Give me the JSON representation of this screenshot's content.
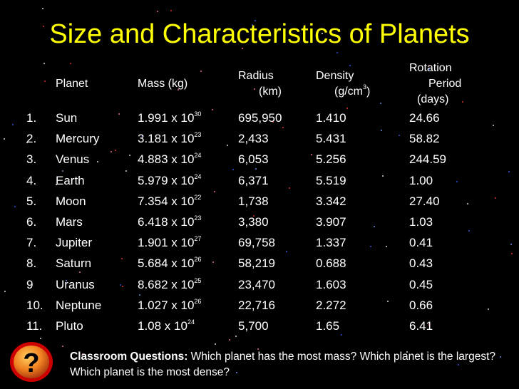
{
  "title": "Size and Characteristics of Planets",
  "headers": {
    "planet": "Planet",
    "mass": "Mass (kg)",
    "radius_line1": "Radius",
    "radius_line2": "(km)",
    "density_line1": "Density",
    "density_line2_prefix": "(g/cm",
    "density_line2_sup": "3",
    "density_line2_suffix": ")",
    "rotation_line1": "Rotation",
    "rotation_line2": "Period",
    "rotation_line3": "(days)"
  },
  "rows": [
    {
      "num": "1.",
      "planet": "Sun",
      "mass_base": "1.991 x 10",
      "mass_exp": "30",
      "radius": "695,950",
      "density": "1.410",
      "rotation": "24.66"
    },
    {
      "num": "2.",
      "planet": "Mercury",
      "mass_base": "3.181 x 10",
      "mass_exp": "23",
      "radius": "2,433",
      "density": "5.431",
      "rotation": "58.82"
    },
    {
      "num": "3.",
      "planet": "Venus",
      "mass_base": "4.883 x 10",
      "mass_exp": "24",
      "radius": "6,053",
      "density": "5.256",
      "rotation": "244.59"
    },
    {
      "num": "4.",
      "planet": "Earth",
      "mass_base": "5.979 x 10",
      "mass_exp": "24",
      "radius": "6,371",
      "density": "5.519",
      "rotation": "1.00"
    },
    {
      "num": "5.",
      "planet": "Moon",
      "mass_base": "7.354 x 10",
      "mass_exp": "22",
      "radius": "1,738",
      "density": "3.342",
      "rotation": "27.40"
    },
    {
      "num": "6.",
      "planet": "Mars",
      "mass_base": "6.418 x 10",
      "mass_exp": "23",
      "radius": "3,380",
      "density": "3.907",
      "rotation": "1.03"
    },
    {
      "num": "7.",
      "planet": "Jupiter",
      "mass_base": "1.901 x 10",
      "mass_exp": "27",
      "radius": "69,758",
      "density": "1.337",
      "rotation": "0.41"
    },
    {
      "num": "8.",
      "planet": "Saturn",
      "mass_base": "5.684 x 10",
      "mass_exp": "26",
      "radius": "58,219",
      "density": "0.688",
      "rotation": "0.43"
    },
    {
      "num": "9",
      "planet": "Uranus",
      "mass_base": "8.682 x 10",
      "mass_exp": "25",
      "radius": "23,470",
      "density": "1.603",
      "rotation": "0.45"
    },
    {
      "num": "10.",
      "planet": "Neptune",
      "mass_base": "1.027 x 10",
      "mass_exp": "26",
      "radius": "22,716",
      "density": "2.272",
      "rotation": "0.66"
    },
    {
      "num": "11.",
      "planet": "Pluto",
      "mass_base": "1.08 x 10",
      "mass_exp": "24",
      "radius": "5,700",
      "density": "1.65",
      "rotation": "6.41"
    }
  ],
  "questions": {
    "label": "Classroom Questions:",
    "text": " Which planet has the most mass? Which planet is the largest? Which planet is the most dense?"
  },
  "colors": {
    "background": "#000000",
    "title": "#ffff00",
    "text": "#ffffff",
    "icon_fill": "#f08020",
    "icon_border": "#cc0000"
  },
  "icons": {
    "question": "question-mark-icon"
  }
}
